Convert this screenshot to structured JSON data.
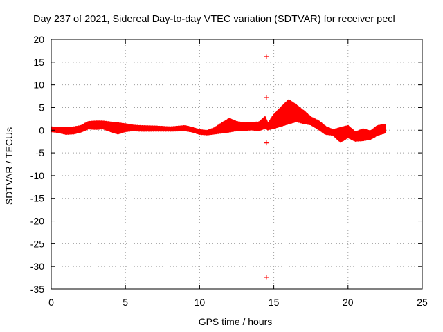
{
  "chart_data": {
    "type": "scatter",
    "title": "Day 237 of 2021, Sidereal Day-to-day VTEC variation (SDTVAR) for receiver pecl",
    "xlabel": "GPS time / hours",
    "ylabel": "SDTVAR / TECUs",
    "xlim": [
      0,
      25
    ],
    "ylim": [
      -35,
      20
    ],
    "xticks": [
      0,
      5,
      10,
      15,
      20,
      25
    ],
    "yticks": [
      20,
      15,
      10,
      5,
      0,
      -5,
      -10,
      -15,
      -20,
      -25,
      -30,
      -35
    ],
    "grid": true,
    "marker": "+",
    "color": "#ff0000",
    "series": [
      {
        "name": "SDTVAR",
        "band_points": [
          [
            0.0,
            -0.2,
            0.6
          ],
          [
            0.5,
            -0.4,
            0.5
          ],
          [
            1.0,
            -0.8,
            0.5
          ],
          [
            1.5,
            -0.7,
            0.6
          ],
          [
            2.0,
            -0.3,
            0.9
          ],
          [
            2.5,
            0.4,
            1.8
          ],
          [
            3.0,
            0.3,
            1.9
          ],
          [
            3.5,
            0.4,
            1.9
          ],
          [
            4.0,
            -0.2,
            1.7
          ],
          [
            4.5,
            -0.7,
            1.5
          ],
          [
            5.0,
            -0.2,
            1.3
          ],
          [
            5.5,
            0.0,
            1.0
          ],
          [
            6.0,
            -0.1,
            0.9
          ],
          [
            7.0,
            -0.1,
            0.8
          ],
          [
            8.0,
            -0.1,
            0.6
          ],
          [
            9.0,
            0.0,
            0.9
          ],
          [
            9.5,
            -0.3,
            0.5
          ],
          [
            10.0,
            -0.8,
            0.0
          ],
          [
            10.5,
            -0.9,
            -0.2
          ],
          [
            11.0,
            -0.7,
            0.4
          ],
          [
            11.5,
            -0.5,
            1.5
          ],
          [
            12.0,
            -0.3,
            2.5
          ],
          [
            12.5,
            0.0,
            1.8
          ],
          [
            13.0,
            0.0,
            1.5
          ],
          [
            13.5,
            0.2,
            1.6
          ],
          [
            14.0,
            0.0,
            1.7
          ],
          [
            14.4,
            0.5,
            2.8
          ],
          [
            14.6,
            0.2,
            1.3
          ],
          [
            15.0,
            0.5,
            3.3
          ],
          [
            15.5,
            1.0,
            5.0
          ],
          [
            16.0,
            1.5,
            6.6
          ],
          [
            16.5,
            2.0,
            5.5
          ],
          [
            17.0,
            1.6,
            4.2
          ],
          [
            17.5,
            1.3,
            2.8
          ],
          [
            18.0,
            0.3,
            2.0
          ],
          [
            18.5,
            -0.8,
            0.7
          ],
          [
            19.0,
            -1.0,
            0.0
          ],
          [
            19.5,
            -2.5,
            0.5
          ],
          [
            20.0,
            -1.5,
            0.9
          ],
          [
            20.5,
            -2.3,
            -0.5
          ],
          [
            21.0,
            -2.2,
            0.2
          ],
          [
            21.5,
            -1.9,
            -0.3
          ],
          [
            22.0,
            -1.0,
            0.9
          ],
          [
            22.5,
            -0.5,
            1.2
          ]
        ],
        "outliers": [
          [
            14.5,
            16.2
          ],
          [
            14.5,
            7.2
          ],
          [
            14.5,
            -2.8
          ],
          [
            14.5,
            -32.4
          ]
        ]
      }
    ]
  }
}
